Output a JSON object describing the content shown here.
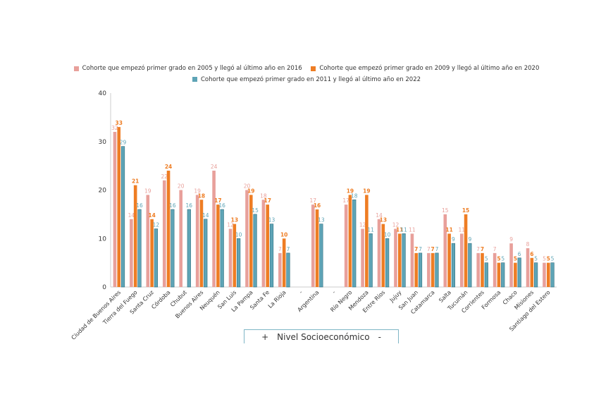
{
  "chart_data": {
    "type": "bar",
    "ylim": [
      0,
      40
    ],
    "yticks": [
      0,
      10,
      20,
      30,
      40
    ],
    "categories": [
      "Ciudad de Buenos Aires",
      "Tierra del Fuego",
      "Santa Cruz",
      "Córdoba",
      "Chubut",
      "Buenos Aires",
      "Neuquén",
      "San Luis",
      "La Pampa",
      "Santa Fe",
      "La Rioja",
      "-",
      "Argentina",
      "-",
      "Río Negro",
      "Mendoza",
      "Entre Ríos",
      "Jujuy",
      "San Juan",
      "Catamarca",
      "Salta",
      "Tucumán",
      "Corrientes",
      "Formosa",
      "Chaco",
      "Misiones",
      "Santiago del Estero"
    ],
    "series": [
      {
        "name": "Cohorte que empezó primer grado en 2005 y llegó al último año en 2016",
        "color": "#e8a09b",
        "values": [
          32,
          14,
          19,
          22,
          20,
          19,
          24,
          12,
          20,
          18,
          7,
          null,
          17,
          null,
          17,
          12,
          14,
          12,
          11,
          7,
          15,
          11,
          7,
          7,
          9,
          8,
          5
        ]
      },
      {
        "name": "Cohorte que empezó primer grado en 2009 y llegó al último año en 2020",
        "color": "#ee7d24",
        "values": [
          33,
          21,
          14,
          24,
          null,
          18,
          17,
          13,
          19,
          17,
          10,
          null,
          16,
          null,
          19,
          19,
          13,
          11,
          7,
          7,
          11,
          15,
          7,
          5,
          5,
          6,
          5
        ]
      },
      {
        "name": "Cohorte que empezó primer grado en 2011 y llegó al último año en 2022",
        "color": "#5ea4b6",
        "values": [
          29,
          16,
          12,
          16,
          16,
          14,
          16,
          10,
          15,
          13,
          7,
          null,
          13,
          null,
          18,
          11,
          10,
          11,
          7,
          7,
          9,
          9,
          5,
          5,
          6,
          5,
          5
        ]
      }
    ]
  },
  "nse_button": {
    "plus": "+",
    "label": "Nivel Socioeconómico",
    "minus": "-"
  }
}
